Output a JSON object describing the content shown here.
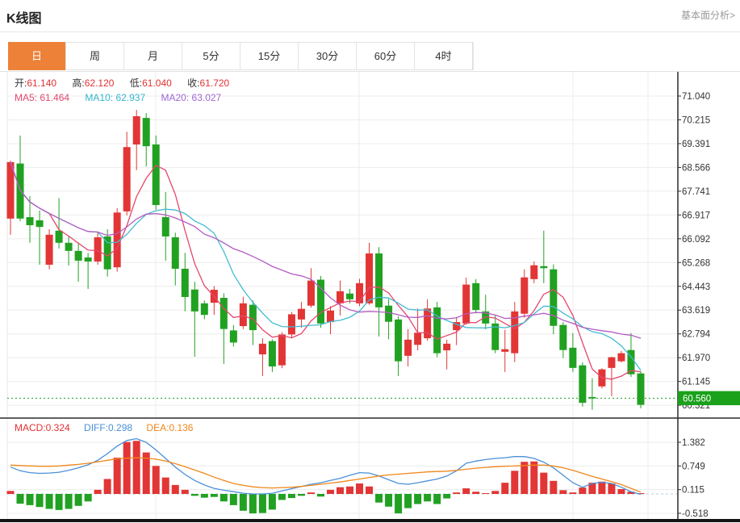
{
  "header": {
    "title": "K线图",
    "link": "基本面分析>"
  },
  "tabs": {
    "active_index": 0,
    "items": [
      {
        "label": "日"
      },
      {
        "label": "周"
      },
      {
        "label": "月"
      },
      {
        "label": "5分"
      },
      {
        "label": "15分"
      },
      {
        "label": "30分"
      },
      {
        "label": "60分"
      },
      {
        "label": "4时"
      }
    ]
  },
  "legend": {
    "ohlc": [
      {
        "label": "开:",
        "value": "61.140"
      },
      {
        "label": "高:",
        "value": "62.120"
      },
      {
        "label": "低:",
        "value": "61.040"
      },
      {
        "label": "收:",
        "value": "61.720"
      }
    ],
    "ma": [
      {
        "label": "MA5:",
        "value": "61.464"
      },
      {
        "label": "MA10:",
        "value": "62.937"
      },
      {
        "label": "MA20:",
        "value": "63.027"
      }
    ],
    "macd": [
      {
        "label": "MACD:",
        "value": "0.324"
      },
      {
        "label": "DIFF:",
        "value": "0.298"
      },
      {
        "label": "DEA:",
        "value": "0.136"
      }
    ]
  },
  "colors": {
    "up": "#e23535",
    "down": "#21a121",
    "ma5": "#e5476d",
    "ma10": "#41bcd2",
    "ma20": "#b35cc3",
    "diff": "#4a90d9",
    "dea": "#f0871a",
    "accent": "#ed8138",
    "badge": "#1ba11b",
    "current_line": "#21a121",
    "grid": "#ececec",
    "axis_dark": "#2a2a2a",
    "axis_text": "#333333",
    "baseline": "#b9cdd8",
    "bottom_bar": "#141414"
  },
  "chart_data": {
    "type": "candlestick",
    "title": "K线图",
    "legend_position": "top-left",
    "grid": true,
    "price_panel": {
      "y_ticks": [
        "71.040",
        "70.215",
        "69.391",
        "68.566",
        "67.741",
        "66.917",
        "66.092",
        "65.268",
        "64.443",
        "63.619",
        "62.794",
        "61.970",
        "61.145",
        "60.321"
      ],
      "y_top": 71.04,
      "y_tick_step": 0.825,
      "current_price": "60.560",
      "current_price_value": 60.56,
      "ma_periods": [
        5,
        10,
        20
      ],
      "candles_ohlc": [
        [
          66.79,
          68.8,
          66.23,
          68.75
        ],
        [
          68.7,
          69.67,
          66.7,
          66.79
        ],
        [
          66.84,
          67.57,
          65.95,
          66.56
        ],
        [
          66.73,
          67.07,
          65.19,
          66.5
        ],
        [
          65.19,
          66.42,
          65.03,
          66.23
        ],
        [
          66.37,
          67.5,
          65.75,
          65.95
        ],
        [
          65.95,
          66.17,
          65.16,
          65.67
        ],
        [
          65.67,
          65.95,
          64.6,
          65.33
        ],
        [
          65.44,
          65.6,
          64.35,
          65.3
        ],
        [
          65.3,
          66.31,
          65.19,
          66.14
        ],
        [
          66.17,
          66.42,
          64.78,
          65.03
        ],
        [
          65.1,
          67.15,
          64.95,
          67.0
        ],
        [
          67.04,
          69.8,
          66.9,
          69.27
        ],
        [
          69.36,
          70.56,
          68.47,
          70.34
        ],
        [
          70.28,
          70.45,
          68.6,
          69.3
        ],
        [
          69.36,
          69.67,
          67.1,
          67.26
        ],
        [
          66.84,
          67.71,
          65.33,
          66.17
        ],
        [
          66.14,
          66.3,
          64.47,
          65.05
        ],
        [
          65.05,
          65.6,
          63.57,
          64.07
        ],
        [
          64.33,
          64.6,
          62.0,
          63.57
        ],
        [
          63.85,
          63.95,
          63.3,
          63.45
        ],
        [
          63.87,
          64.45,
          63.45,
          64.32
        ],
        [
          64.04,
          64.2,
          61.75,
          62.96
        ],
        [
          62.91,
          63.1,
          62.35,
          62.49
        ],
        [
          63.06,
          64.08,
          62.96,
          63.85
        ],
        [
          63.8,
          63.95,
          62.4,
          62.92
        ],
        [
          62.08,
          62.64,
          61.33,
          62.45
        ],
        [
          62.54,
          62.6,
          61.47,
          61.66
        ],
        [
          61.7,
          62.85,
          61.6,
          62.77
        ],
        [
          62.77,
          63.55,
          62.65,
          63.47
        ],
        [
          63.29,
          63.9,
          63.0,
          63.66
        ],
        [
          63.77,
          65.07,
          63.7,
          64.64
        ],
        [
          64.67,
          64.8,
          63.0,
          63.15
        ],
        [
          63.2,
          63.75,
          62.78,
          63.6
        ],
        [
          63.85,
          64.64,
          63.43,
          64.27
        ],
        [
          64.19,
          64.35,
          63.85,
          63.99
        ],
        [
          63.85,
          64.7,
          63.75,
          64.55
        ],
        [
          63.85,
          65.95,
          63.8,
          65.58
        ],
        [
          65.58,
          65.8,
          62.7,
          63.71
        ],
        [
          63.77,
          64.0,
          62.6,
          63.21
        ],
        [
          63.29,
          63.4,
          61.33,
          61.84
        ],
        [
          62.03,
          62.96,
          61.66,
          62.59
        ],
        [
          62.41,
          63.67,
          62.22,
          62.83
        ],
        [
          62.64,
          63.99,
          62.55,
          63.67
        ],
        [
          63.71,
          63.9,
          61.98,
          62.12
        ],
        [
          62.22,
          62.59,
          61.56,
          62.45
        ],
        [
          62.92,
          63.38,
          62.4,
          63.2
        ],
        [
          63.15,
          64.74,
          63.1,
          64.5
        ],
        [
          64.55,
          64.69,
          63.5,
          63.62
        ],
        [
          63.57,
          64.15,
          62.95,
          63.15
        ],
        [
          63.15,
          63.43,
          62.12,
          62.23
        ],
        [
          62.17,
          62.93,
          61.47,
          62.26
        ],
        [
          62.12,
          63.9,
          61.81,
          63.57
        ],
        [
          63.49,
          65.03,
          63.35,
          64.75
        ],
        [
          64.69,
          65.3,
          64.55,
          65.17
        ],
        [
          65.14,
          66.37,
          64.55,
          65.07
        ],
        [
          65.03,
          65.2,
          62.78,
          63.07
        ],
        [
          63.1,
          63.2,
          61.95,
          62.23
        ],
        [
          62.31,
          62.82,
          61.47,
          61.61
        ],
        [
          61.7,
          61.8,
          60.27,
          60.4
        ],
        [
          60.6,
          61.25,
          60.16,
          60.55
        ],
        [
          60.97,
          61.6,
          60.9,
          61.56
        ],
        [
          61.61,
          62.0,
          60.63,
          61.98
        ],
        [
          61.84,
          62.2,
          61.8,
          62.12
        ],
        [
          62.23,
          62.82,
          61.3,
          61.39
        ],
        [
          61.42,
          61.5,
          60.21,
          60.33
        ]
      ]
    },
    "macd_panel": {
      "y_ticks": [
        "1.382",
        "0.749",
        "0.115",
        "-0.518"
      ],
      "y_tick_values": [
        1.382,
        0.749,
        0.115,
        -0.518
      ],
      "bars": [
        0.08,
        -0.26,
        -0.3,
        -0.35,
        -0.4,
        -0.43,
        -0.4,
        -0.32,
        -0.2,
        0.11,
        0.4,
        0.97,
        1.39,
        1.42,
        1.11,
        0.75,
        0.44,
        0.24,
        0.11,
        -0.05,
        -0.1,
        -0.08,
        -0.2,
        -0.3,
        -0.45,
        -0.52,
        -0.51,
        -0.42,
        -0.16,
        -0.11,
        -0.05,
        0.04,
        -0.07,
        0.11,
        0.18,
        0.2,
        0.28,
        0.2,
        -0.23,
        -0.34,
        -0.52,
        -0.38,
        -0.27,
        -0.2,
        -0.27,
        -0.12,
        0.04,
        0.15,
        0.06,
        0.02,
        0.08,
        0.3,
        0.62,
        0.86,
        0.87,
        0.57,
        0.35,
        0.1,
        0.04,
        0.17,
        0.3,
        0.33,
        0.28,
        0.13,
        0.06,
        0.02
      ],
      "diff": [
        0.72,
        0.62,
        0.57,
        0.55,
        0.56,
        0.58,
        0.63,
        0.7,
        0.78,
        0.9,
        1.08,
        1.28,
        1.43,
        1.48,
        1.38,
        1.18,
        0.95,
        0.72,
        0.52,
        0.36,
        0.24,
        0.15,
        0.1,
        0.06,
        0.02,
        0.0,
        0.0,
        0.02,
        0.08,
        0.14,
        0.2,
        0.26,
        0.3,
        0.36,
        0.42,
        0.5,
        0.57,
        0.56,
        0.48,
        0.38,
        0.28,
        0.26,
        0.3,
        0.35,
        0.4,
        0.48,
        0.62,
        0.82,
        0.88,
        0.92,
        0.95,
        0.97,
        1.0,
        1.0,
        0.95,
        0.85,
        0.7,
        0.5,
        0.3,
        0.18,
        0.28,
        0.31,
        0.28,
        0.18,
        0.06,
        -0.01
      ],
      "dea": [
        0.77,
        0.76,
        0.75,
        0.74,
        0.74,
        0.75,
        0.77,
        0.79,
        0.82,
        0.86,
        0.9,
        0.94,
        0.96,
        0.97,
        0.96,
        0.93,
        0.88,
        0.81,
        0.73,
        0.64,
        0.55,
        0.45,
        0.36,
        0.28,
        0.23,
        0.19,
        0.17,
        0.16,
        0.17,
        0.18,
        0.2,
        0.23,
        0.26,
        0.29,
        0.32,
        0.36,
        0.4,
        0.44,
        0.48,
        0.51,
        0.53,
        0.55,
        0.57,
        0.59,
        0.6,
        0.61,
        0.63,
        0.66,
        0.69,
        0.71,
        0.73,
        0.74,
        0.75,
        0.76,
        0.77,
        0.77,
        0.75,
        0.7,
        0.63,
        0.55,
        0.47,
        0.4,
        0.33,
        0.25,
        0.15,
        0.05
      ]
    },
    "vgrid_x": [
      193,
      445,
      710,
      803
    ]
  }
}
